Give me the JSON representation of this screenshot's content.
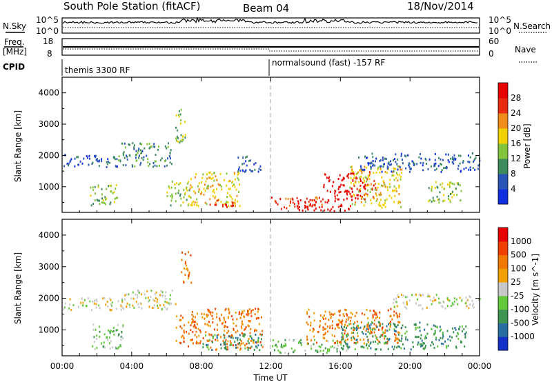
{
  "header": {
    "station": "South Pole Station (fitACF)",
    "beam": "Beam 04",
    "date": "18/Nov/2014"
  },
  "side_labels": {
    "n_sky": "N.Sky",
    "n_search": "N.Search",
    "freq_line1": "Freq.",
    "freq_line2": "[MHz]",
    "nave": "Nave",
    "cpid": "CPID"
  },
  "noise_panel": {
    "left_ticks": [
      "10^5",
      "10^0"
    ],
    "right_ticks": [
      "10^5",
      "10^0"
    ]
  },
  "freq_panel": {
    "left_ticks": [
      "18",
      "8"
    ],
    "right_ticks": [
      "60",
      "0"
    ]
  },
  "cpid_panel": {
    "segments": [
      {
        "start_hour": 0,
        "label": "themis 3300 RF"
      },
      {
        "start_hour": 12,
        "label": "normalsound (fast) -157 RF"
      }
    ]
  },
  "chart_data": [
    {
      "type": "heatmap",
      "name": "power",
      "ylabel": "Slant Range [km]",
      "y_ticks": [
        1000,
        2000,
        3000,
        4000
      ],
      "ylim": [
        180,
        4500
      ],
      "xlim": [
        0,
        24
      ],
      "colorbar": {
        "label": "Power [dB]",
        "tick_labels": [
          "4",
          "8",
          "12",
          "16",
          "20",
          "24",
          "28"
        ],
        "colors": [
          "#1030e0",
          "#2c55b8",
          "#3d8a5c",
          "#84c43c",
          "#f0d000",
          "#f08c1a",
          "#e82c12",
          "#e80000"
        ]
      },
      "bands": [
        {
          "t": [
            0,
            3.3
          ],
          "r": [
            1650,
            2050
          ],
          "level": 1
        },
        {
          "t": [
            1.6,
            3.2
          ],
          "r": [
            400,
            1100
          ],
          "level": 3
        },
        {
          "t": [
            3.2,
            6.3
          ],
          "r": [
            1650,
            2450
          ],
          "level": 2
        },
        {
          "t": [
            6.0,
            7.3
          ],
          "r": [
            400,
            1200
          ],
          "level": 3
        },
        {
          "t": [
            6.5,
            7.1
          ],
          "r": [
            2300,
            3500
          ],
          "level": 3
        },
        {
          "t": [
            7.3,
            10.2
          ],
          "r": [
            400,
            1500
          ],
          "level": 4
        },
        {
          "t": [
            8.2,
            10.0
          ],
          "r": [
            380,
            600
          ],
          "level": 6
        },
        {
          "t": [
            10.0,
            11.5
          ],
          "r": [
            1500,
            2000
          ],
          "level": 1
        },
        {
          "t": [
            12.0,
            15.0
          ],
          "r": [
            300,
            700
          ],
          "level": 6
        },
        {
          "t": [
            13.5,
            16.6
          ],
          "r": [
            250,
            600
          ],
          "level": 7
        },
        {
          "t": [
            15.0,
            18.0
          ],
          "r": [
            600,
            1500
          ],
          "level": 7
        },
        {
          "t": [
            16.5,
            19.5
          ],
          "r": [
            350,
            1700
          ],
          "level": 4
        },
        {
          "t": [
            17.0,
            24.0
          ],
          "r": [
            1500,
            2100
          ],
          "level": 1
        },
        {
          "t": [
            21.0,
            23.0
          ],
          "r": [
            500,
            1200
          ],
          "level": 3
        }
      ]
    },
    {
      "type": "heatmap",
      "name": "velocity",
      "ylabel": "Slant Range [km]",
      "xlabel": "Time UT",
      "y_ticks": [
        1000,
        2000,
        3000,
        4000
      ],
      "ylim": [
        180,
        4500
      ],
      "xlim": [
        0,
        24
      ],
      "x_ticks": [
        "00:00",
        "04:00",
        "08:00",
        "12:00",
        "16:00",
        "20:00",
        "00:00"
      ],
      "colorbar": {
        "label": "Velocity [m s^-1]",
        "tick_labels": [
          "1000",
          "500",
          "100",
          "25",
          "-25",
          "-100",
          "-500",
          "-1000"
        ],
        "colors": [
          "#1432c8",
          "#286ea0",
          "#3c9450",
          "#64c83c",
          "#c8c8c8",
          "#f0a000",
          "#f07800",
          "#f04000",
          "#e80000"
        ]
      },
      "bands": [
        {
          "t": [
            0,
            3.5
          ],
          "r": [
            1650,
            2050
          ],
          "level": 4
        },
        {
          "t": [
            3.5,
            6.5
          ],
          "r": [
            1650,
            2300
          ],
          "level": 4
        },
        {
          "t": [
            1.7,
            3.5
          ],
          "r": [
            400,
            1200
          ],
          "level": 3
        },
        {
          "t": [
            6.5,
            8.0
          ],
          "r": [
            500,
            1600
          ],
          "level": 6
        },
        {
          "t": [
            6.8,
            7.4
          ],
          "r": [
            2500,
            3500
          ],
          "level": 6
        },
        {
          "t": [
            8.0,
            11.5
          ],
          "r": [
            400,
            1700
          ],
          "level": 6
        },
        {
          "t": [
            8.0,
            11.5
          ],
          "r": [
            380,
            900
          ],
          "level": 2
        },
        {
          "t": [
            12.0,
            16.5
          ],
          "r": [
            300,
            750
          ],
          "level": 3
        },
        {
          "t": [
            14.0,
            19.5
          ],
          "r": [
            600,
            1700
          ],
          "level": 6
        },
        {
          "t": [
            16.0,
            21.0
          ],
          "r": [
            400,
            1300
          ],
          "level": 2
        },
        {
          "t": [
            19.0,
            24.0
          ],
          "r": [
            1700,
            2150
          ],
          "level": 4
        },
        {
          "t": [
            21.0,
            23.2
          ],
          "r": [
            450,
            1200
          ],
          "level": 2
        }
      ]
    }
  ]
}
